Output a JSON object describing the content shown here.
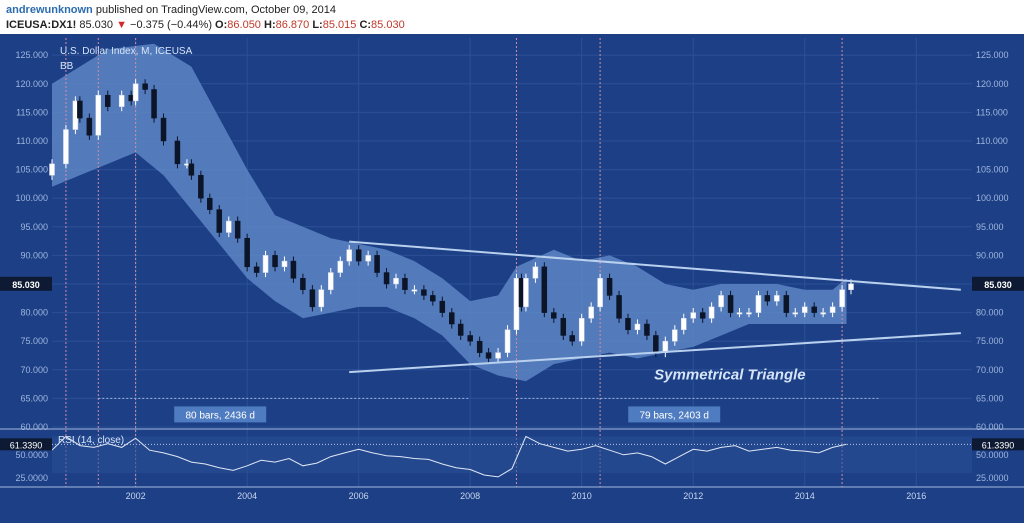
{
  "header": {
    "user": "andrewunknown",
    "published": "published on TradingView.com, October 09, 2014",
    "symbol": "ICEUSA:DX1!",
    "last": "85.030",
    "change": "−0.375 (−0.44%)",
    "o_label": "O:",
    "o": "86.050",
    "h_label": "H:",
    "h": "86.870",
    "l_label": "L:",
    "l": "85.015",
    "c_label": "C:",
    "c": "85.030"
  },
  "colors": {
    "background": "#1c3f86",
    "band": "#5d86c4",
    "up": "#ffffff",
    "down": "#0c1428",
    "grid": "#2c5196",
    "trend": "#b9d0ee",
    "vline": "#d98aa6"
  },
  "chart_data": [
    {
      "type": "candlestick",
      "title": "U.S. Dollar Index, M, ICEUSA",
      "indicator": "BB",
      "annotation": "Symmetrical Triangle",
      "last_value_label": "85.030",
      "ylim": [
        60,
        128
      ],
      "y_ticks": [
        "60.000",
        "65.000",
        "70.000",
        "75.000",
        "80.000",
        "85.000",
        "90.000",
        "95.000",
        "100.000",
        "105.000",
        "110.000",
        "115.000",
        "120.000",
        "125.000"
      ],
      "x_ticks": [
        "2002",
        "2004",
        "2006",
        "2008",
        "2010",
        "2012",
        "2014",
        "2016"
      ],
      "x_range": [
        2000.5,
        2017.0
      ],
      "vertical_lines": [
        2000.75,
        2001.33,
        2002.0,
        2008.83,
        2010.33,
        2014.67
      ],
      "trendlines": [
        {
          "from": [
            2005.83,
            92.4
          ],
          "to": [
            2016.8,
            84.0
          ]
        },
        {
          "from": [
            2005.83,
            69.6
          ],
          "to": [
            2016.8,
            76.4
          ]
        }
      ],
      "measures": [
        {
          "label": "80 bars, 2436 d",
          "from": 2001.33,
          "to": 2008.0,
          "y": 65.0
        },
        {
          "label": "79 bars, 2403 d",
          "from": 2008.83,
          "to": 2015.35,
          "y": 65.0
        }
      ],
      "monthly_points": [
        [
          2000.5,
          106
        ],
        [
          2000.75,
          112
        ],
        [
          2000.92,
          117
        ],
        [
          2001.0,
          114
        ],
        [
          2001.17,
          111
        ],
        [
          2001.33,
          118
        ],
        [
          2001.5,
          116
        ],
        [
          2001.75,
          118
        ],
        [
          2001.92,
          117
        ],
        [
          2002.0,
          120
        ],
        [
          2002.17,
          119
        ],
        [
          2002.33,
          114
        ],
        [
          2002.5,
          110
        ],
        [
          2002.75,
          106
        ],
        [
          2002.92,
          106
        ],
        [
          2003.0,
          104
        ],
        [
          2003.17,
          100
        ],
        [
          2003.33,
          98
        ],
        [
          2003.5,
          94
        ],
        [
          2003.67,
          96
        ],
        [
          2003.83,
          93
        ],
        [
          2004.0,
          88
        ],
        [
          2004.17,
          87
        ],
        [
          2004.33,
          90
        ],
        [
          2004.5,
          88
        ],
        [
          2004.67,
          89
        ],
        [
          2004.83,
          86
        ],
        [
          2005.0,
          84
        ],
        [
          2005.17,
          81
        ],
        [
          2005.33,
          84
        ],
        [
          2005.5,
          87
        ],
        [
          2005.67,
          89
        ],
        [
          2005.83,
          91
        ],
        [
          2006.0,
          89
        ],
        [
          2006.17,
          90
        ],
        [
          2006.33,
          87
        ],
        [
          2006.5,
          85
        ],
        [
          2006.67,
          86
        ],
        [
          2006.83,
          84
        ],
        [
          2007.0,
          84
        ],
        [
          2007.17,
          83
        ],
        [
          2007.33,
          82
        ],
        [
          2007.5,
          80
        ],
        [
          2007.67,
          78
        ],
        [
          2007.83,
          76
        ],
        [
          2008.0,
          75
        ],
        [
          2008.17,
          73
        ],
        [
          2008.33,
          72
        ],
        [
          2008.5,
          73
        ],
        [
          2008.67,
          77
        ],
        [
          2008.83,
          86
        ],
        [
          2008.92,
          81
        ],
        [
          2009.0,
          86
        ],
        [
          2009.17,
          88
        ],
        [
          2009.33,
          80
        ],
        [
          2009.5,
          79
        ],
        [
          2009.67,
          76
        ],
        [
          2009.83,
          75
        ],
        [
          2010.0,
          79
        ],
        [
          2010.17,
          81
        ],
        [
          2010.33,
          86
        ],
        [
          2010.5,
          83
        ],
        [
          2010.67,
          79
        ],
        [
          2010.83,
          77
        ],
        [
          2011.0,
          78
        ],
        [
          2011.17,
          76
        ],
        [
          2011.33,
          73
        ],
        [
          2011.5,
          75
        ],
        [
          2011.67,
          77
        ],
        [
          2011.83,
          79
        ],
        [
          2012.0,
          80
        ],
        [
          2012.17,
          79
        ],
        [
          2012.33,
          81
        ],
        [
          2012.5,
          83
        ],
        [
          2012.67,
          80
        ],
        [
          2012.83,
          80
        ],
        [
          2013.0,
          80
        ],
        [
          2013.17,
          83
        ],
        [
          2013.33,
          82
        ],
        [
          2013.5,
          83
        ],
        [
          2013.67,
          80
        ],
        [
          2013.83,
          80
        ],
        [
          2014.0,
          81
        ],
        [
          2014.17,
          80
        ],
        [
          2014.33,
          80
        ],
        [
          2014.5,
          81
        ],
        [
          2014.67,
          84
        ],
        [
          2014.83,
          85.03
        ]
      ],
      "bb_upper": [
        [
          2000.5,
          120
        ],
        [
          2001.5,
          126
        ],
        [
          2002.33,
          127
        ],
        [
          2003.0,
          123
        ],
        [
          2003.5,
          114
        ],
        [
          2004.0,
          105
        ],
        [
          2004.5,
          97
        ],
        [
          2005.0,
          95
        ],
        [
          2005.5,
          93
        ],
        [
          2006.0,
          92
        ],
        [
          2006.5,
          91
        ],
        [
          2007.0,
          89
        ],
        [
          2007.5,
          86
        ],
        [
          2008.0,
          82
        ],
        [
          2008.5,
          83
        ],
        [
          2008.83,
          88
        ],
        [
          2009.5,
          91
        ],
        [
          2010.0,
          89
        ],
        [
          2010.5,
          90
        ],
        [
          2011.0,
          88
        ],
        [
          2011.5,
          85
        ],
        [
          2012.0,
          84
        ],
        [
          2012.5,
          85
        ],
        [
          2013.0,
          85
        ],
        [
          2013.5,
          85
        ],
        [
          2014.0,
          84
        ],
        [
          2014.5,
          84
        ],
        [
          2014.75,
          86
        ]
      ],
      "bb_lower": [
        [
          2000.5,
          102
        ],
        [
          2001.0,
          104
        ],
        [
          2001.5,
          106
        ],
        [
          2002.0,
          108
        ],
        [
          2002.5,
          104
        ],
        [
          2003.0,
          98
        ],
        [
          2003.5,
          92
        ],
        [
          2004.0,
          86
        ],
        [
          2004.5,
          82
        ],
        [
          2005.0,
          79
        ],
        [
          2005.5,
          80
        ],
        [
          2006.0,
          81
        ],
        [
          2006.5,
          81
        ],
        [
          2007.0,
          79
        ],
        [
          2007.5,
          76
        ],
        [
          2008.0,
          71
        ],
        [
          2008.5,
          69
        ],
        [
          2009.0,
          68
        ],
        [
          2009.5,
          71
        ],
        [
          2010.0,
          72
        ],
        [
          2010.5,
          73
        ],
        [
          2011.0,
          72
        ],
        [
          2011.5,
          73
        ],
        [
          2012.0,
          74
        ],
        [
          2012.5,
          76
        ],
        [
          2013.0,
          78
        ],
        [
          2013.5,
          78
        ],
        [
          2014.0,
          78
        ],
        [
          2014.5,
          78
        ],
        [
          2014.75,
          78
        ]
      ]
    },
    {
      "type": "line",
      "title": "RSI (14, close)",
      "last_value_label": "61.3390",
      "ylim": [
        15,
        78
      ],
      "y_ticks": [
        "25.0000",
        "50.0000"
      ],
      "reference_lines": [
        70,
        30
      ],
      "x": [
        2000.5,
        2000.75,
        2001.0,
        2001.25,
        2001.5,
        2001.75,
        2002.0,
        2002.25,
        2002.5,
        2002.75,
        2003.0,
        2003.25,
        2003.5,
        2003.75,
        2004.0,
        2004.25,
        2004.5,
        2004.75,
        2005.0,
        2005.25,
        2005.5,
        2005.75,
        2006.0,
        2006.25,
        2006.5,
        2006.75,
        2007.0,
        2007.25,
        2007.5,
        2007.75,
        2008.0,
        2008.25,
        2008.5,
        2008.75,
        2009.0,
        2009.25,
        2009.5,
        2009.75,
        2010.0,
        2010.25,
        2010.5,
        2010.75,
        2011.0,
        2011.25,
        2011.5,
        2011.75,
        2012.0,
        2012.25,
        2012.5,
        2012.75,
        2013.0,
        2013.25,
        2013.5,
        2013.75,
        2014.0,
        2014.25,
        2014.5,
        2014.75
      ],
      "values": [
        55,
        70,
        60,
        58,
        62,
        58,
        68,
        55,
        52,
        48,
        42,
        40,
        36,
        33,
        38,
        44,
        42,
        46,
        38,
        41,
        48,
        52,
        56,
        52,
        49,
        48,
        46,
        45,
        40,
        36,
        34,
        28,
        26,
        35,
        70,
        62,
        58,
        54,
        56,
        60,
        55,
        50,
        52,
        48,
        40,
        48,
        56,
        54,
        58,
        60,
        54,
        56,
        58,
        55,
        54,
        52,
        58,
        61.339
      ]
    }
  ]
}
